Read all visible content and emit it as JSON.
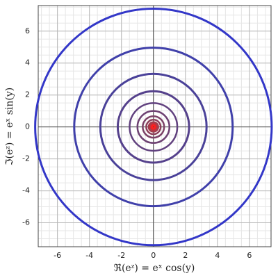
{
  "chart_data": {
    "type": "circles",
    "x_label": "ℜ(eᶻ) = eˣ cos(y)",
    "y_label": "ℑ(eᶻ) = eˣ sin(y)",
    "radii": [
      7.39,
      4.95,
      3.32,
      2.23,
      1.49,
      1.0,
      0.67,
      0.45,
      0.3,
      0.2,
      0.13,
      0.09
    ],
    "colors": [
      "#3337c8",
      "#4040aa",
      "#4a4199",
      "#55418c",
      "#61417f",
      "#6e4273",
      "#7c4267",
      "#8c405b",
      "#a03c4d",
      "#bb3440",
      "#dd2a30",
      "#ff1f1f"
    ],
    "xlim": [
      -7.2,
      7.35
    ],
    "ylim": [
      -7.5,
      7.6
    ],
    "xticks": [
      -6,
      -4,
      -2,
      0,
      2,
      4,
      6
    ],
    "yticks": [
      -6,
      -4,
      -2,
      0,
      2,
      4,
      6
    ],
    "grid": true
  }
}
